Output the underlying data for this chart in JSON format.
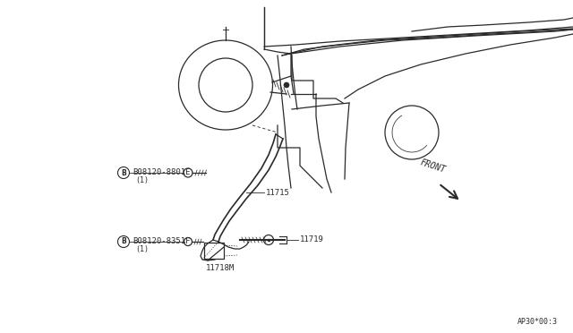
{
  "bg_color": "#ffffff",
  "line_color": "#2a2a2a",
  "labels": {
    "part_A_bolt": "B08120-8801E",
    "part_A_qty": "(1)",
    "part_bracket": "11715",
    "part_adjuster": "11718M",
    "part_bolt2": "B08120-8351F",
    "part_bolt2_qty": "(1)",
    "part_bolt3": "11719",
    "front_label": "FRONT",
    "diagram_id": "AP30*00:3"
  },
  "font_size_label": 6.5,
  "font_size_id": 6.0
}
